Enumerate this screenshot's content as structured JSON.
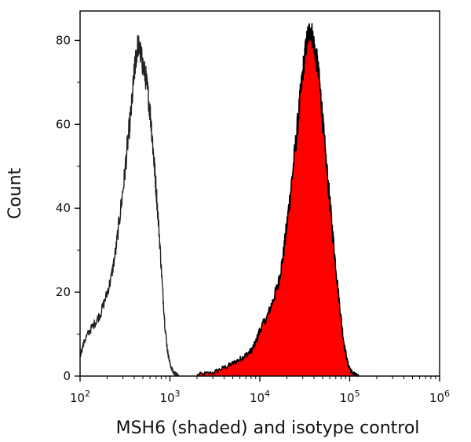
{
  "chart_data": {
    "type": "area",
    "title": "",
    "xlabel": "MSH6 (shaded) and isotype control",
    "ylabel": "Count",
    "xscale": "log",
    "xlim": [
      100,
      1000000
    ],
    "ylim": [
      0,
      87
    ],
    "x_ticks": [
      {
        "value": 100,
        "base": "10",
        "exp": "2"
      },
      {
        "value": 1000,
        "base": "10",
        "exp": "3"
      },
      {
        "value": 10000,
        "base": "10",
        "exp": "4"
      },
      {
        "value": 100000,
        "base": "10",
        "exp": "5"
      },
      {
        "value": 1000000,
        "base": "10",
        "exp": "6"
      }
    ],
    "y_ticks": [
      0,
      20,
      40,
      60,
      80
    ],
    "grid": false,
    "series": [
      {
        "name": "isotype control",
        "style": "outline",
        "color": "#222222",
        "x": [
          100,
          115,
          130,
          150,
          170,
          195,
          220,
          250,
          280,
          310,
          340,
          370,
          400,
          420,
          440,
          470,
          500,
          540,
          580,
          620,
          660,
          700,
          760,
          820,
          880,
          940,
          1000,
          1080,
          1150,
          1250
        ],
        "y": [
          5,
          9,
          11,
          13,
          15,
          19,
          23,
          30,
          39,
          47,
          56,
          63,
          72,
          76,
          79,
          77,
          74,
          71,
          66,
          60,
          52,
          45,
          34,
          22,
          12,
          6,
          3,
          1,
          0.5,
          0
        ]
      },
      {
        "name": "MSH6",
        "style": "shaded",
        "color": "#ff0000",
        "x": [
          2000,
          3000,
          4000,
          5000,
          6000,
          7000,
          8000,
          9000,
          10000,
          12000,
          14000,
          16000,
          18000,
          20000,
          22000,
          25000,
          28000,
          31000,
          34000,
          37000,
          40000,
          44000,
          48000,
          52000,
          58000,
          64000,
          70000,
          78000,
          86000,
          95000,
          105000,
          115000,
          125000
        ],
        "y": [
          0.3,
          0.8,
          2,
          3,
          4,
          5,
          6,
          8,
          11,
          14,
          18,
          22,
          28,
          36,
          44,
          55,
          66,
          75,
          81,
          83,
          79,
          74,
          66,
          56,
          45,
          35,
          26,
          16,
          8,
          3,
          1,
          0.3,
          0
        ]
      }
    ]
  }
}
